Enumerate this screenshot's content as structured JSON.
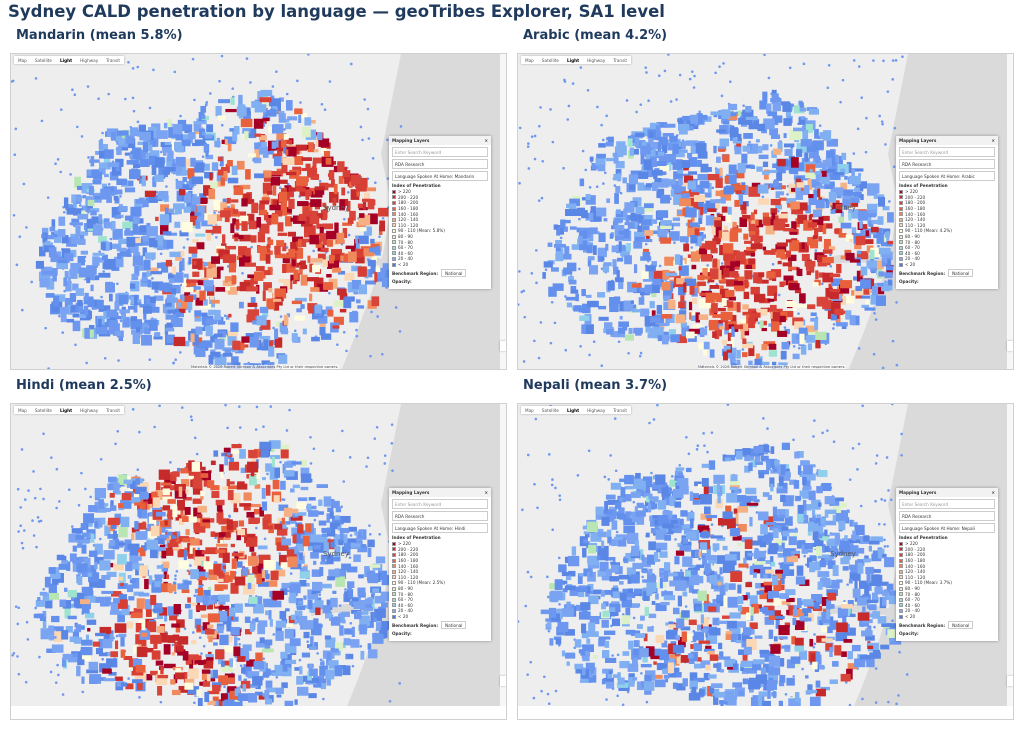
{
  "title": "Sydney CALD penetration by language — geoTribes Explorer, SA1 level",
  "map_tabs": [
    "Map",
    "Satellite",
    "Light",
    "Highway",
    "Transit"
  ],
  "layers_panel": {
    "header": "Mapping Layers",
    "search_placeholder": "Enter Search Keyword",
    "source": "RDA Research",
    "legend_title": "Index of Penetration",
    "benchmark_label": "Benchmark Region:",
    "benchmark_value": "National",
    "opacity_label": "Opacity:"
  },
  "legend_colors": [
    "#a50026",
    "#c62a2a",
    "#d73f35",
    "#e8603c",
    "#f08a5d",
    "#f5b084",
    "#fbd7b4",
    "#fffce0",
    "#dcf2c6",
    "#b8e6b2",
    "#9de3cf",
    "#8fd0ea",
    "#80b0f2",
    "#4a78e0"
  ],
  "place_label": "Sydney",
  "attribution": "Materials © 2026 Robert Stimson & Associates Pty Ltd or their respective owners.",
  "panels": [
    {
      "title": "Mandarin (mean 5.8%)",
      "layer": "Language Spoken At Home: Mandarin",
      "legend": [
        "> 220",
        "200 - 220",
        "180 - 200",
        "160 - 180",
        "140 - 160",
        "120 - 140",
        "110 - 120",
        "90 - 110 (Mean: 5.8%)",
        "80 - 90",
        "70 - 80",
        "60 - 70",
        "40 - 60",
        "20 - 40",
        "< 20"
      ]
    },
    {
      "title": "Arabic (mean 4.2%)",
      "layer": "Language Spoken At Home: Arabic",
      "legend": [
        "> 220",
        "200 - 220",
        "180 - 200",
        "160 - 180",
        "140 - 160",
        "120 - 140",
        "110 - 120",
        "90 - 110 (Mean: 4.2%)",
        "80 - 90",
        "70 - 80",
        "60 - 70",
        "40 - 60",
        "20 - 40",
        "< 20"
      ]
    },
    {
      "title": "Hindi (mean 2.5%)",
      "layer": "Language Spoken At Home: Hindi",
      "legend": [
        "> 220",
        "200 - 220",
        "180 - 200",
        "160 - 180",
        "140 - 160",
        "120 - 140",
        "110 - 120",
        "90 - 110 (Mean: 2.5%)",
        "80 - 90",
        "70 - 80",
        "60 - 70",
        "40 - 60",
        "20 - 40",
        "< 20"
      ]
    },
    {
      "title": "Nepali (mean 3.7%)",
      "layer": "Language Spoken At Home: Nepali",
      "legend": [
        "> 220",
        "200 - 220",
        "180 - 200",
        "160 - 180",
        "140 - 160",
        "120 - 140",
        "110 - 120",
        "90 - 110 (Mean: 3.7%)",
        "80 - 90",
        "70 - 80",
        "60 - 70",
        "40 - 60",
        "20 - 40",
        "< 20"
      ]
    }
  ]
}
